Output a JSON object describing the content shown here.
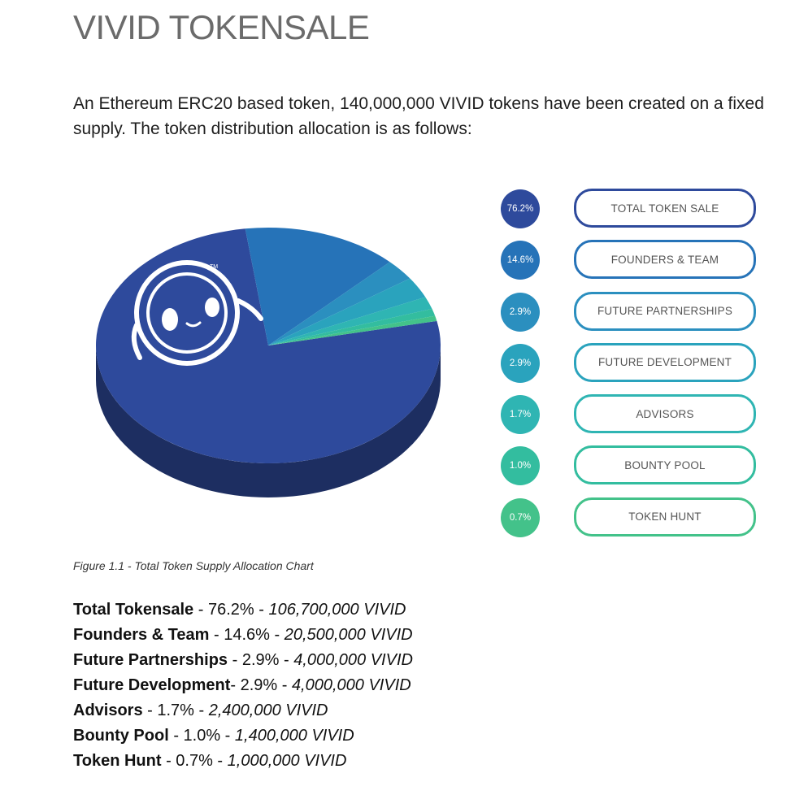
{
  "title": "VIVID TOKENSALE",
  "intro": "An Ethereum ERC20 based token, 140,000,000 VIVID tokens have been created on a fixed supply. The token distribution allocation is as follows:",
  "caption": "Figure 1.1 - Total Token Supply Allocation Chart",
  "logo_mark": "TM",
  "chart_data": {
    "type": "pie",
    "title": "",
    "categories": [
      "TOTAL TOKEN SALE",
      "FOUNDERS & TEAM",
      "FUTURE PARTNERSHIPS",
      "FUTURE DEVELOPMENT",
      "ADVISORS",
      "BOUNTY POOL",
      "TOKEN HUNT"
    ],
    "values": [
      76.2,
      14.6,
      2.9,
      2.9,
      1.7,
      1.0,
      0.7
    ],
    "value_labels": [
      "76.2%",
      "14.6%",
      "2.9%",
      "2.9%",
      "1.7%",
      "1.0%",
      "0.7%"
    ],
    "colors": [
      "#2e4a9c",
      "#2673b8",
      "#2b8fbf",
      "#2aa3bd",
      "#2fb5b3",
      "#33bd9f",
      "#43c28a"
    ],
    "legend_position": "right"
  },
  "breakdown": [
    {
      "name": "Total Tokensale",
      "sep": " - ",
      "percent": "76.2%",
      "dash": " - ",
      "amount": "106,700,000 VIVID"
    },
    {
      "name": "Founders & Team",
      "sep": " - ",
      "percent": "14.6%",
      "dash": " - ",
      "amount": "20,500,000 VIVID"
    },
    {
      "name": "Future Partnerships",
      "sep": " - ",
      "percent": "2.9%",
      "dash": " - ",
      "amount": "4,000,000 VIVID"
    },
    {
      "name": "Future Development",
      "sep": "- ",
      "percent": "2.9%",
      "dash": " - ",
      "amount": "4,000,000 VIVID"
    },
    {
      "name": "Advisors",
      "sep": " - ",
      "percent": "1.7%",
      "dash": " - ",
      "amount": "2,400,000 VIVID"
    },
    {
      "name": "Bounty Pool",
      "sep": " - ",
      "percent": "1.0%",
      "dash": " - ",
      "amount": "1,400,000 VIVID"
    },
    {
      "name": "Token Hunt",
      "sep": " - ",
      "percent": "0.7%",
      "dash": " - ",
      "amount": "1,000,000 VIVID"
    }
  ]
}
